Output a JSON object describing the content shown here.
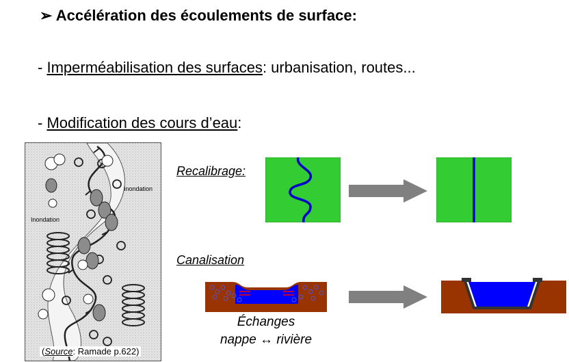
{
  "heading": {
    "marker": "➢",
    "text": "Accélération des écoulements de surface:"
  },
  "bullets": [
    {
      "prefix": "- ",
      "underlined": "Imperméabilisation des surfaces",
      "rest": ": urbanisation, routes..."
    },
    {
      "prefix": "- ",
      "underlined": "Modification des cours d’eau",
      "rest": ":"
    }
  ],
  "figure": {
    "labels": [
      "Inondation",
      "Inondation"
    ],
    "source_italic": "Source",
    "source_rest": ": Ramade p.622"
  },
  "recalibrage": {
    "label": "Recalibrage:",
    "colors": {
      "field": "#33cc33",
      "river": "#0000cc",
      "arrow": "#808080"
    }
  },
  "canalisation": {
    "label": "Canalisation",
    "colors": {
      "soil": "#993300",
      "water": "#0000ff",
      "wall": "#333333",
      "exchange": "#ff0000"
    }
  },
  "echanges": {
    "line1": "Échanges",
    "line2": "nappe ↔ rivière"
  }
}
